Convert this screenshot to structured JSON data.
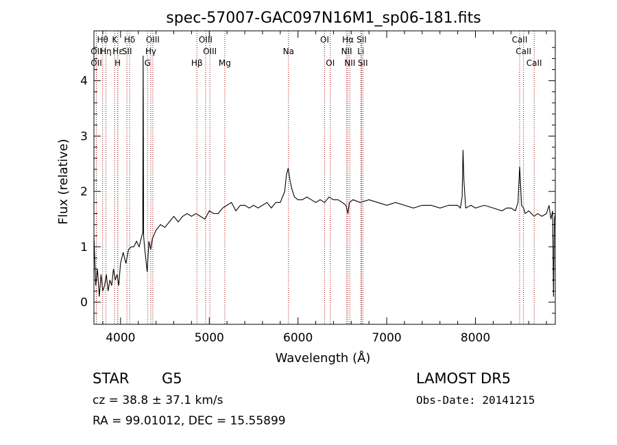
{
  "chart_data": {
    "type": "line",
    "title": "spec-57007-GAC097N16M1_sp06-181.fits",
    "xlabel": "Wavelength (Å)",
    "ylabel": "Flux (relative)",
    "xlim": [
      3700,
      8900
    ],
    "ylim": [
      -0.4,
      4.9
    ],
    "x_ticks": [
      4000,
      5000,
      6000,
      7000,
      8000
    ],
    "y_ticks": [
      0,
      1,
      2,
      3,
      4
    ],
    "grid": false,
    "series": [
      {
        "x": [
          3700,
          3720,
          3740,
          3760,
          3780,
          3800,
          3820,
          3840,
          3860,
          3880,
          3900,
          3920,
          3940,
          3960,
          3980,
          4000,
          4030,
          4060,
          4090,
          4120,
          4150,
          4180,
          4210,
          4240,
          4250,
          4255,
          4260,
          4270,
          4300,
          4320,
          4340,
          4360,
          4400,
          4450,
          4500,
          4550,
          4600,
          4650,
          4700,
          4750,
          4800,
          4850,
          4900,
          4950,
          5000,
          5050,
          5100,
          5150,
          5200,
          5250,
          5300,
          5350,
          5400,
          5450,
          5500,
          5550,
          5600,
          5650,
          5700,
          5750,
          5800,
          5850,
          5870,
          5890,
          5910,
          5930,
          5960,
          6000,
          6050,
          6100,
          6150,
          6200,
          6250,
          6300,
          6350,
          6400,
          6450,
          6500,
          6540,
          6563,
          6580,
          6620,
          6700,
          6800,
          6900,
          7000,
          7100,
          7200,
          7300,
          7400,
          7500,
          7600,
          7700,
          7800,
          7830,
          7850,
          7860,
          7870,
          7890,
          7950,
          8000,
          8100,
          8200,
          8300,
          8350,
          8400,
          8450,
          8480,
          8498,
          8520,
          8542,
          8560,
          8600,
          8662,
          8700,
          8750,
          8800,
          8830,
          8850,
          8870,
          8880,
          8890,
          8900
        ],
        "y": [
          1.2,
          0.3,
          0.6,
          0.1,
          0.5,
          0.2,
          0.3,
          0.5,
          0.2,
          0.4,
          0.3,
          0.6,
          0.4,
          0.5,
          0.3,
          0.7,
          0.9,
          0.7,
          0.95,
          1.0,
          1.0,
          1.1,
          1.0,
          1.2,
          1.25,
          4.45,
          1.2,
          1.0,
          0.55,
          1.1,
          0.95,
          1.15,
          1.3,
          1.4,
          1.35,
          1.45,
          1.55,
          1.45,
          1.55,
          1.6,
          1.55,
          1.6,
          1.55,
          1.5,
          1.65,
          1.6,
          1.6,
          1.7,
          1.75,
          1.8,
          1.65,
          1.75,
          1.75,
          1.7,
          1.75,
          1.7,
          1.75,
          1.8,
          1.7,
          1.8,
          1.8,
          2.0,
          2.3,
          2.42,
          2.2,
          2.05,
          1.9,
          1.85,
          1.85,
          1.9,
          1.85,
          1.8,
          1.85,
          1.8,
          1.9,
          1.85,
          1.85,
          1.8,
          1.75,
          1.6,
          1.8,
          1.85,
          1.8,
          1.85,
          1.8,
          1.75,
          1.8,
          1.75,
          1.7,
          1.75,
          1.75,
          1.7,
          1.75,
          1.75,
          1.7,
          1.9,
          2.75,
          2.2,
          1.7,
          1.75,
          1.7,
          1.75,
          1.7,
          1.65,
          1.7,
          1.7,
          1.65,
          1.8,
          2.45,
          1.75,
          1.7,
          1.6,
          1.65,
          1.55,
          1.6,
          1.55,
          1.6,
          1.75,
          1.5,
          1.65,
          0.1,
          1.5,
          1.6
        ]
      }
    ],
    "line_markers": [
      {
        "name": "OII",
        "wl": 3727,
        "row": 3
      },
      {
        "name": "Hθ",
        "wl": 3798,
        "row": 1
      },
      {
        "name": "OII",
        "wl": 3727,
        "row": 2
      },
      {
        "name": "Hη",
        "wl": 3835,
        "row": 2
      },
      {
        "name": "K",
        "wl": 3934,
        "row": 1
      },
      {
        "name": "Hε",
        "wl": 3970,
        "row": 2
      },
      {
        "name": "H",
        "wl": 3968,
        "row": 3
      },
      {
        "name": "Hδ",
        "wl": 4102,
        "row": 1
      },
      {
        "name": "SII",
        "wl": 4072,
        "row": 2
      },
      {
        "name": "OIII",
        "wl": 4363,
        "row": 1
      },
      {
        "name": "Hγ",
        "wl": 4341,
        "row": 2
      },
      {
        "name": "G",
        "wl": 4305,
        "row": 3
      },
      {
        "name": "OIII",
        "wl": 4959,
        "row": 1
      },
      {
        "name": "OIII",
        "wl": 5007,
        "row": 2
      },
      {
        "name": "Hβ",
        "wl": 4861,
        "row": 3
      },
      {
        "name": "Mg",
        "wl": 5175,
        "row": 3
      },
      {
        "name": "Na",
        "wl": 5893,
        "row": 2
      },
      {
        "name": "OI",
        "wl": 6300,
        "row": 1
      },
      {
        "name": "OI",
        "wl": 6364,
        "row": 3
      },
      {
        "name": "Hα",
        "wl": 6563,
        "row": 1
      },
      {
        "name": "NII",
        "wl": 6548,
        "row": 2
      },
      {
        "name": "NII",
        "wl": 6584,
        "row": 3
      },
      {
        "name": "SII",
        "wl": 6717,
        "row": 1
      },
      {
        "name": "Li",
        "wl": 6708,
        "row": 2
      },
      {
        "name": "SII",
        "wl": 6731,
        "row": 3
      },
      {
        "name": "CaII",
        "wl": 8498,
        "row": 1
      },
      {
        "name": "CaII",
        "wl": 8542,
        "row": 2
      },
      {
        "name": "CaII",
        "wl": 8662,
        "row": 3
      }
    ],
    "colors": {
      "spectrum": "#000000",
      "marker_line": "#a00000",
      "axis": "#000000"
    }
  },
  "info": {
    "class_label": "STAR",
    "subclass": "G5",
    "survey": "LAMOST DR5",
    "cz": "cz = 38.8 ± 37.1 km/s",
    "obs_date": "Obs-Date: 20141215",
    "coords": "RA =  99.01012, DEC =  15.55899"
  }
}
